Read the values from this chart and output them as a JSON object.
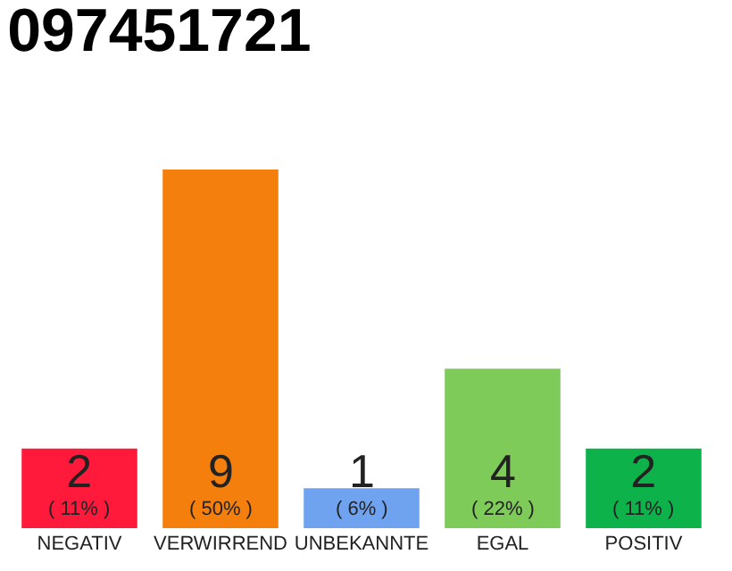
{
  "chart_data": {
    "type": "bar",
    "title": "097451721",
    "categories": [
      "NEGATIV",
      "VERWIRREND",
      "UNBEKANNTE",
      "EGAL",
      "POSITIV"
    ],
    "values": [
      2,
      9,
      1,
      4,
      2
    ],
    "colors": [
      "#ff1a3c",
      "#f47f0c",
      "#6fa3f0",
      "#7ecb5a",
      "#0db34a"
    ],
    "value_labels": [
      "2\n( 11% )",
      "9\n( 50% )",
      "1\n( 6% )",
      "4\n( 22% )",
      "2\n( 11% )"
    ]
  }
}
